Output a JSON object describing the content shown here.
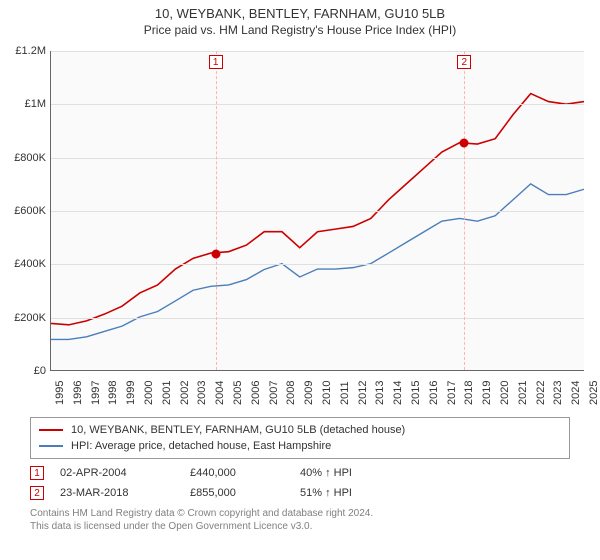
{
  "title": "10, WEYBANK, BENTLEY, FARNHAM, GU10 5LB",
  "subtitle": "Price paid vs. HM Land Registry's House Price Index (HPI)",
  "chart": {
    "type": "line",
    "background_color": "#fafafa",
    "grid_color": "#e0e0e0",
    "axis_color": "#666666",
    "ylim": [
      0,
      1200000
    ],
    "ytick_step": 200000,
    "ytick_labels": [
      "£0",
      "£200K",
      "£400K",
      "£600K",
      "£800K",
      "£1M",
      "£1.2M"
    ],
    "xlim": [
      1995,
      2025
    ],
    "xtick_step": 1,
    "xtick_labels": [
      "1995",
      "1996",
      "1997",
      "1998",
      "1999",
      "2000",
      "2001",
      "2002",
      "2003",
      "2004",
      "2005",
      "2006",
      "2007",
      "2008",
      "2009",
      "2010",
      "2011",
      "2012",
      "2013",
      "2014",
      "2015",
      "2016",
      "2017",
      "2018",
      "2019",
      "2020",
      "2021",
      "2022",
      "2023",
      "2024",
      "2025"
    ],
    "xlabel_fontsize": 11,
    "ylabel_fontsize": 11,
    "xlabel_rotation": -90,
    "series": [
      {
        "name": "property",
        "color": "#cc0000",
        "line_width": 1.6,
        "data": [
          [
            1995,
            175000
          ],
          [
            1996,
            170000
          ],
          [
            1997,
            185000
          ],
          [
            1998,
            210000
          ],
          [
            1999,
            240000
          ],
          [
            2000,
            290000
          ],
          [
            2001,
            320000
          ],
          [
            2002,
            380000
          ],
          [
            2003,
            420000
          ],
          [
            2004,
            440000
          ],
          [
            2005,
            445000
          ],
          [
            2006,
            470000
          ],
          [
            2007,
            520000
          ],
          [
            2008,
            520000
          ],
          [
            2009,
            460000
          ],
          [
            2010,
            520000
          ],
          [
            2011,
            530000
          ],
          [
            2012,
            540000
          ],
          [
            2013,
            570000
          ],
          [
            2014,
            640000
          ],
          [
            2015,
            700000
          ],
          [
            2016,
            760000
          ],
          [
            2017,
            820000
          ],
          [
            2018,
            855000
          ],
          [
            2019,
            850000
          ],
          [
            2020,
            870000
          ],
          [
            2021,
            960000
          ],
          [
            2022,
            1040000
          ],
          [
            2023,
            1010000
          ],
          [
            2024,
            1000000
          ],
          [
            2025,
            1010000
          ]
        ]
      },
      {
        "name": "hpi",
        "color": "#4a7ebb",
        "line_width": 1.4,
        "data": [
          [
            1995,
            115000
          ],
          [
            1996,
            115000
          ],
          [
            1997,
            125000
          ],
          [
            1998,
            145000
          ],
          [
            1999,
            165000
          ],
          [
            2000,
            200000
          ],
          [
            2001,
            220000
          ],
          [
            2002,
            260000
          ],
          [
            2003,
            300000
          ],
          [
            2004,
            315000
          ],
          [
            2005,
            320000
          ],
          [
            2006,
            340000
          ],
          [
            2007,
            378000
          ],
          [
            2008,
            400000
          ],
          [
            2009,
            350000
          ],
          [
            2010,
            380000
          ],
          [
            2011,
            380000
          ],
          [
            2012,
            385000
          ],
          [
            2013,
            400000
          ],
          [
            2014,
            440000
          ],
          [
            2015,
            480000
          ],
          [
            2016,
            520000
          ],
          [
            2017,
            560000
          ],
          [
            2018,
            570000
          ],
          [
            2019,
            560000
          ],
          [
            2020,
            580000
          ],
          [
            2021,
            640000
          ],
          [
            2022,
            700000
          ],
          [
            2023,
            660000
          ],
          [
            2024,
            660000
          ],
          [
            2025,
            680000
          ]
        ]
      }
    ],
    "markers": [
      {
        "id": "1",
        "x": 2004.25,
        "dot_y": 440000,
        "line_color": "#ffb3b3",
        "badge_color": "#cc0000"
      },
      {
        "id": "2",
        "x": 2018.22,
        "dot_y": 855000,
        "line_color": "#ffb3b3",
        "badge_color": "#cc0000"
      }
    ],
    "dot_color": "#cc0000",
    "dot_size": 9
  },
  "legend": {
    "box_border": "#999999",
    "items": [
      {
        "color": "#cc0000",
        "label": "10, WEYBANK, BENTLEY, FARNHAM, GU10 5LB (detached house)"
      },
      {
        "color": "#4a7ebb",
        "label": "HPI: Average price, detached house, East Hampshire"
      }
    ]
  },
  "transactions": [
    {
      "badge": "1",
      "date": "02-APR-2004",
      "price": "£440,000",
      "pct": "40% ↑ HPI"
    },
    {
      "badge": "2",
      "date": "23-MAR-2018",
      "price": "£855,000",
      "pct": "51% ↑ HPI"
    }
  ],
  "footer_line1": "Contains HM Land Registry data © Crown copyright and database right 2024.",
  "footer_line2": "This data is licensed under the Open Government Licence v3.0."
}
